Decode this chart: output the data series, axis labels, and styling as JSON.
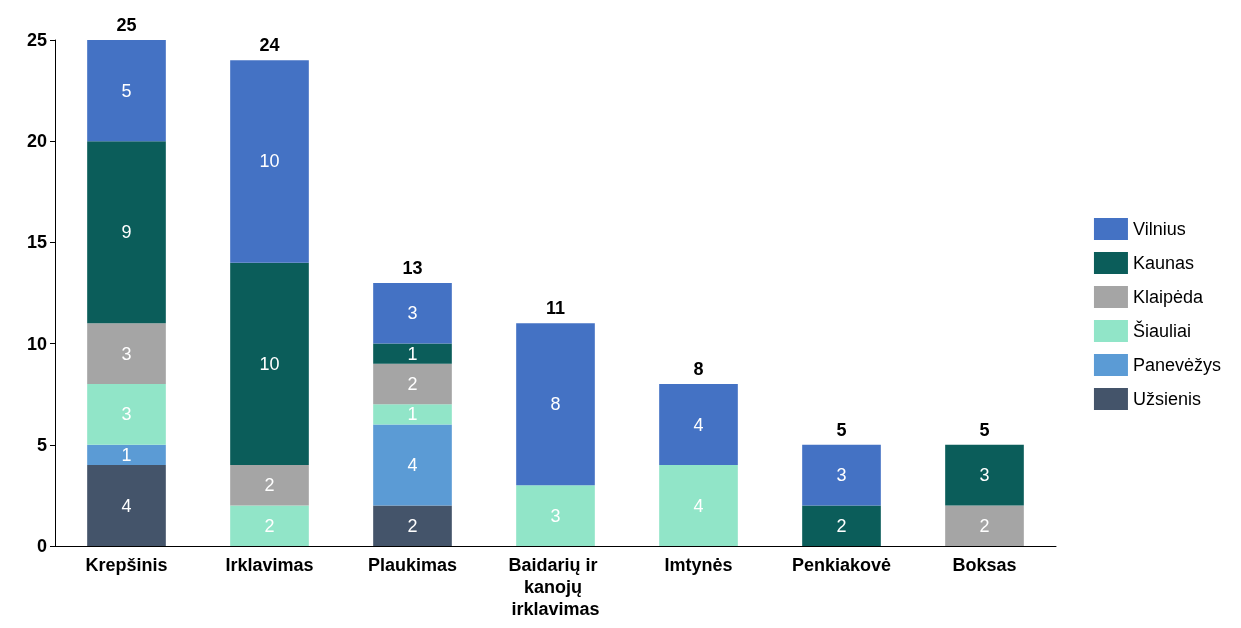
{
  "chart_data": {
    "type": "bar",
    "stacked": true,
    "categories": [
      "Krepšinis",
      "Irklavimas",
      "Plaukimas",
      "Baidarių ir kanojų irklavimas",
      "Imtynės",
      "Penkiakovė",
      "Boksas"
    ],
    "series": [
      {
        "name": "Užsienis",
        "color": "#44546a",
        "values": [
          4,
          null,
          2,
          null,
          null,
          null,
          null
        ]
      },
      {
        "name": "Panevėžys",
        "color": "#5b9bd5",
        "values": [
          1,
          null,
          4,
          null,
          null,
          null,
          null
        ]
      },
      {
        "name": "Šiauliai",
        "color": "#91e5c8",
        "values": [
          3,
          2,
          1,
          3,
          4,
          null,
          null
        ]
      },
      {
        "name": "Klaipėda",
        "color": "#a5a5a5",
        "values": [
          3,
          2,
          2,
          null,
          null,
          null,
          2
        ]
      },
      {
        "name": "Kaunas",
        "color": "#0b5d5a",
        "values": [
          9,
          10,
          1,
          null,
          null,
          2,
          3
        ]
      },
      {
        "name": "Vilnius",
        "color": "#4472c4",
        "values": [
          5,
          10,
          3,
          8,
          4,
          3,
          null
        ]
      }
    ],
    "totals": [
      "25",
      "24",
      "13",
      "11",
      "8",
      "5",
      "5"
    ],
    "data_labels": true,
    "ylim": [
      0,
      25
    ],
    "yticks": [
      0,
      5,
      10,
      15,
      20,
      25
    ],
    "grid": false,
    "legend": "right"
  }
}
